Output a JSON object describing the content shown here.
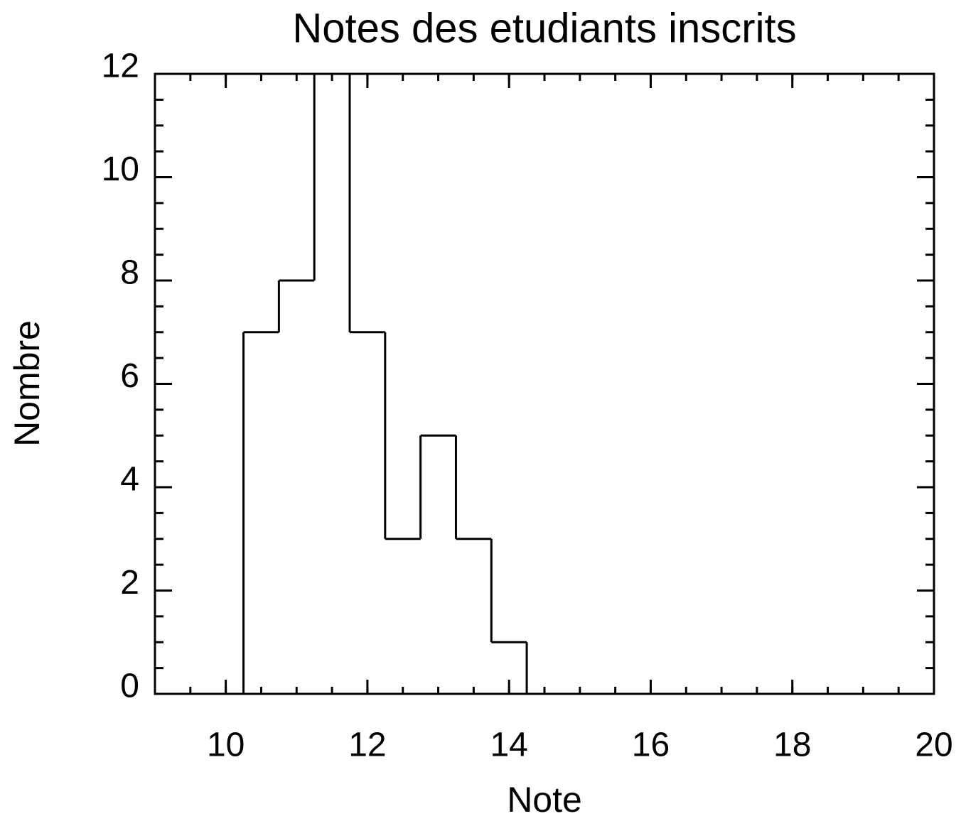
{
  "chart_data": {
    "type": "histogram",
    "title": "Notes des etudiants inscrits",
    "xlabel": "Note",
    "ylabel": "Nombre",
    "bins": [
      10.25,
      10.75,
      11.25,
      11.75,
      12.25,
      12.75,
      13.25,
      13.75,
      14.25
    ],
    "counts": [
      7,
      8,
      12,
      7,
      3,
      5,
      3,
      1
    ],
    "color": "#000000",
    "xlim": [
      9,
      20
    ],
    "xticks": [
      10,
      12,
      14,
      16,
      18,
      20
    ],
    "xminorticks": [
      9,
      9.5,
      10,
      10.5,
      11,
      11.5,
      12,
      12.5,
      13,
      13.5,
      14,
      14.5,
      15,
      15.5,
      16,
      16.5,
      17,
      17.5,
      18,
      18.5,
      19,
      19.5,
      20
    ],
    "ylim": [
      0,
      12
    ],
    "yticks": [
      0,
      2,
      4,
      6,
      8,
      10,
      12
    ],
    "yminorticks": [
      0,
      0.5,
      1,
      1.5,
      2,
      2.5,
      3,
      3.5,
      4,
      4.5,
      5,
      5.5,
      6,
      6.5,
      7,
      7.5,
      8,
      8.5,
      9,
      9.5,
      10,
      10.5,
      11,
      11.5,
      12
    ]
  }
}
